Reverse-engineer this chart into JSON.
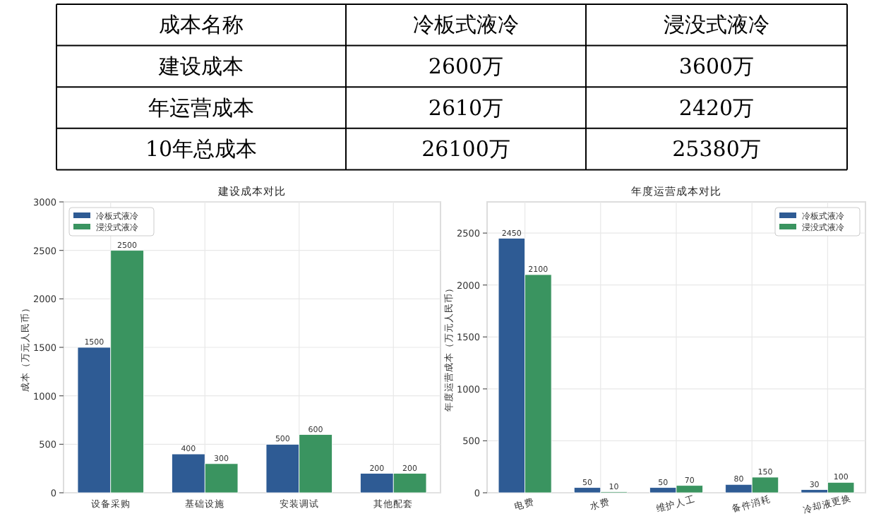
{
  "chart_data": [
    {
      "type": "other",
      "annotations": [
        "成本名称",
        "冷板式液冷",
        "浸没式液冷",
        "建设成本",
        "2600万",
        "3600万",
        "年运营成本",
        "2610万",
        "2420万",
        "10年总成本",
        "26100万",
        "25380万"
      ]
    },
    {
      "type": "bar",
      "title": "建设成本对比",
      "ylabel": "成本（万元人民币）",
      "categories": [
        "设备采购",
        "基础设施",
        "安装调试",
        "其他配套"
      ],
      "series": [
        {
          "name": "冷板式液冷",
          "color": "#2e5b94",
          "values": [
            1500,
            400,
            500,
            200
          ]
        },
        {
          "name": "浸没式液冷",
          "color": "#3a9460",
          "values": [
            2500,
            300,
            600,
            200
          ]
        }
      ],
      "ylim": [
        0,
        3000
      ],
      "yticks": [
        0,
        500,
        1000,
        1500,
        2000,
        2500,
        3000
      ],
      "grid": true,
      "legend": "top left",
      "data_labels": true
    },
    {
      "type": "bar",
      "title": "年度运营成本对比",
      "ylabel": "年度运营成本（万元人民币）",
      "categories": [
        "电费",
        "水费",
        "维护人工",
        "备件消耗",
        "冷却液更换"
      ],
      "series": [
        {
          "name": "冷板式液冷",
          "color": "#2e5b94",
          "values": [
            2450,
            50,
            50,
            80,
            30
          ]
        },
        {
          "name": "浸没式液冷",
          "color": "#3a9460",
          "values": [
            2100,
            10,
            70,
            150,
            100
          ]
        }
      ],
      "ylim": [
        0,
        2800
      ],
      "yticks": [
        0,
        500,
        1000,
        1500,
        2000,
        2500
      ],
      "grid": true,
      "legend": "top right",
      "data_labels": true
    }
  ]
}
